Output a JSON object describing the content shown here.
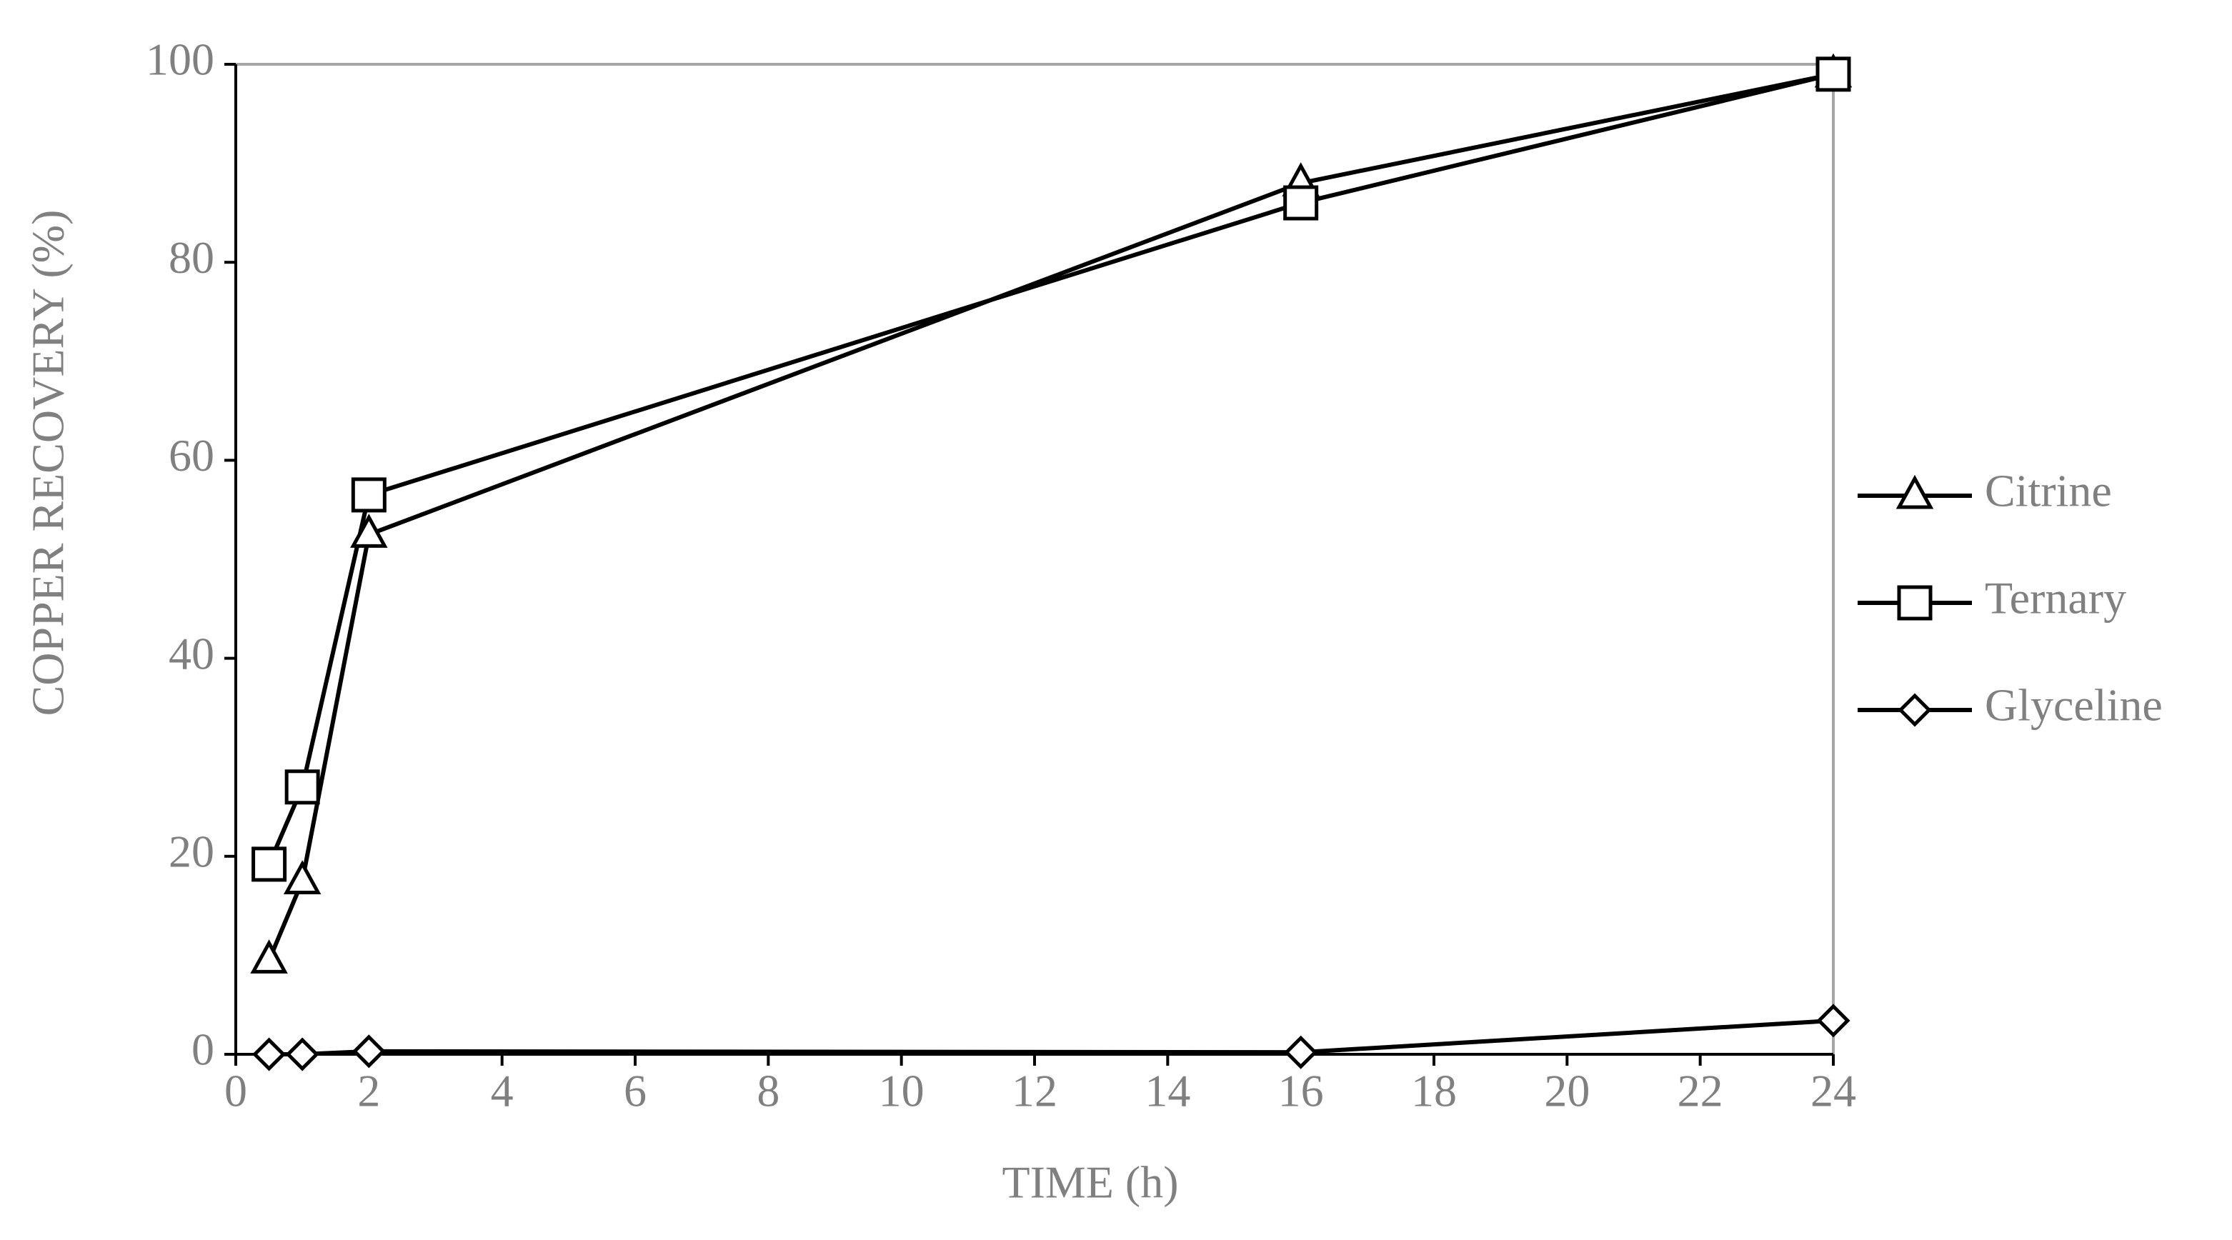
{
  "chart_data": {
    "type": "line",
    "x_label": "TIME (h)",
    "y_label": "COPPER RECOVERY (%)",
    "x": [
      0.5,
      1,
      2,
      16,
      24
    ],
    "series": [
      {
        "name": "Citrine",
        "color": "#000000",
        "marker": "triangle",
        "values": [
          9.5,
          17.5,
          52.5,
          88,
          99
        ]
      },
      {
        "name": "Ternary",
        "color": "#000000",
        "marker": "square",
        "values": [
          19.2,
          27,
          56.5,
          86,
          99
        ]
      },
      {
        "name": "Glyceline",
        "color": "#000000",
        "marker": "diamond",
        "values": [
          0,
          0,
          0.3,
          0.2,
          3.4
        ]
      }
    ],
    "xlim": [
      0,
      24
    ],
    "xticks": [
      0,
      2,
      4,
      6,
      8,
      10,
      12,
      14,
      16,
      18,
      20,
      22,
      24
    ],
    "ylim": [
      0,
      100
    ],
    "yticks": [
      0,
      20,
      40,
      60,
      80,
      100
    ],
    "legend": "right"
  }
}
